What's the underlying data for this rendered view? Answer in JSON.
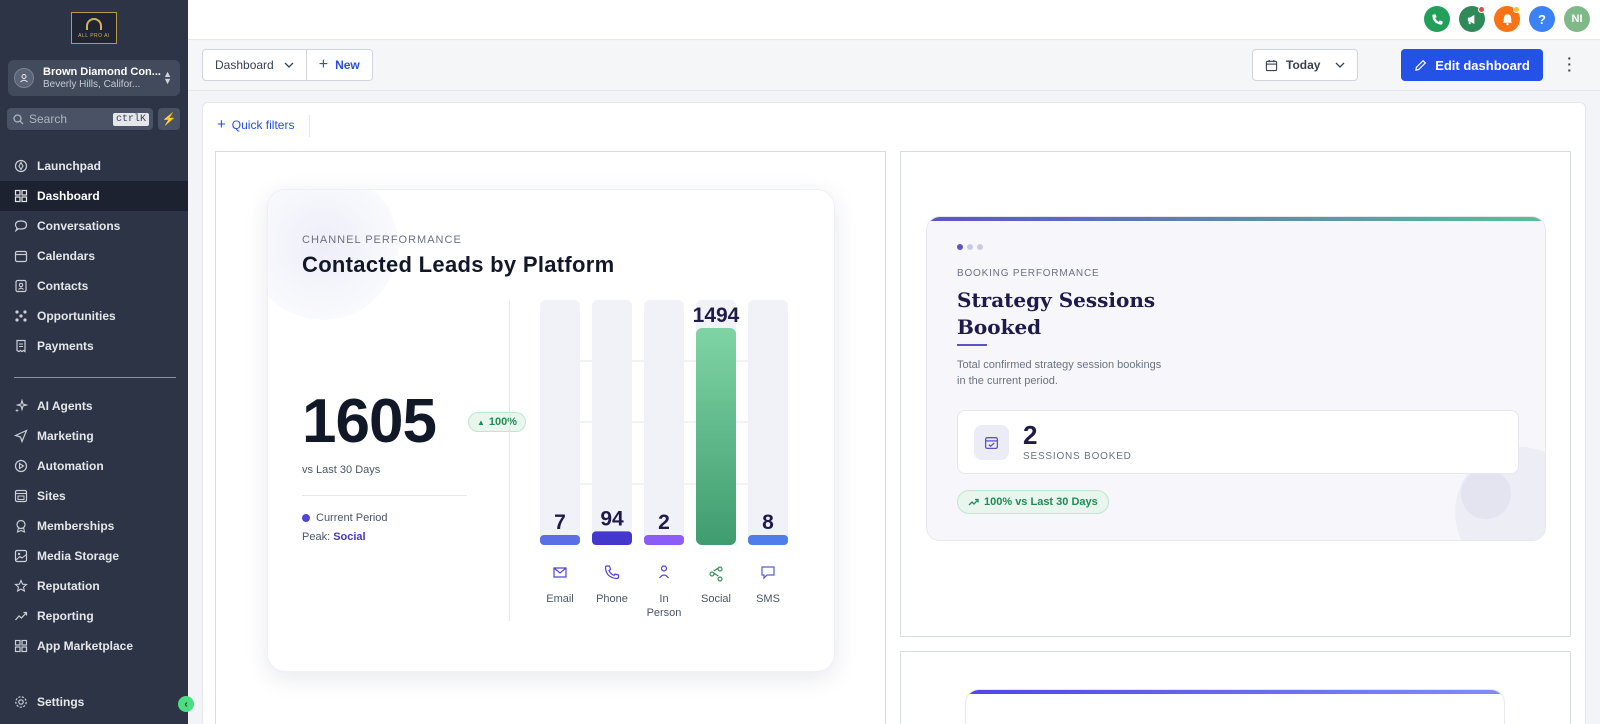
{
  "brand": {
    "logo_text": "ALL PRO AI"
  },
  "account": {
    "name": "Brown Diamond Con...",
    "location": "Beverly Hills, Califor..."
  },
  "search": {
    "placeholder": "Search",
    "shortcut": "ctrlK"
  },
  "nav": {
    "primary": [
      {
        "label": "Launchpad",
        "icon": "rocket-icon"
      },
      {
        "label": "Dashboard",
        "icon": "grid-icon",
        "active": true
      },
      {
        "label": "Conversations",
        "icon": "chat-icon"
      },
      {
        "label": "Calendars",
        "icon": "calendar-icon"
      },
      {
        "label": "Contacts",
        "icon": "contacts-icon"
      },
      {
        "label": "Opportunities",
        "icon": "network-icon"
      },
      {
        "label": "Payments",
        "icon": "receipt-icon"
      }
    ],
    "secondary": [
      {
        "label": "AI Agents",
        "icon": "sparkle-icon"
      },
      {
        "label": "Marketing",
        "icon": "send-icon"
      },
      {
        "label": "Automation",
        "icon": "automation-icon"
      },
      {
        "label": "Sites",
        "icon": "sites-icon"
      },
      {
        "label": "Memberships",
        "icon": "badge-icon"
      },
      {
        "label": "Media Storage",
        "icon": "image-icon"
      },
      {
        "label": "Reputation",
        "icon": "star-icon"
      },
      {
        "label": "Reporting",
        "icon": "trend-icon"
      },
      {
        "label": "App Marketplace",
        "icon": "apps-icon"
      }
    ],
    "settings": "Settings"
  },
  "topbar": {
    "avatar_initials": "NI"
  },
  "toolbar": {
    "dashboard_label": "Dashboard",
    "new_label": "New",
    "today_label": "Today",
    "edit_label": "Edit dashboard"
  },
  "filters": {
    "quick_filters_label": "Quick filters"
  },
  "leads_card": {
    "eyebrow": "CHANNEL PERFORMANCE",
    "title": "Contacted Leads by Platform",
    "total": "1605",
    "change": "100%",
    "comparison": "vs Last 30 Days",
    "legend": "Current Period",
    "peak_label": "Peak:",
    "peak_value": "Social"
  },
  "chart_data": {
    "type": "bar",
    "categories": [
      "Email",
      "Phone",
      "In Person",
      "Social",
      "SMS"
    ],
    "category_lines": [
      [
        "Email"
      ],
      [
        "Phone"
      ],
      [
        "In",
        "Person"
      ],
      [
        "Social"
      ],
      [
        "SMS"
      ]
    ],
    "values": [
      7,
      94,
      2,
      1494,
      8
    ],
    "icons": [
      "mail-icon",
      "phone-icon",
      "person-icon",
      "share-icon",
      "message-icon"
    ],
    "colors": [
      "#5a6ee6",
      "#4338ca",
      "#8b5cf6",
      "#4fb07f",
      "#4f7de9"
    ],
    "ylim": [
      0,
      1494
    ]
  },
  "booking_card": {
    "eyebrow": "BOOKING PERFORMANCE",
    "title_line1": "Strategy Sessions",
    "title_line2": "Booked",
    "description_line1": "Total confirmed strategy session bookings",
    "description_line2": "in the current period.",
    "count": "2",
    "count_label": "SESSIONS BOOKED",
    "change": "100% vs Last 30 Days"
  }
}
